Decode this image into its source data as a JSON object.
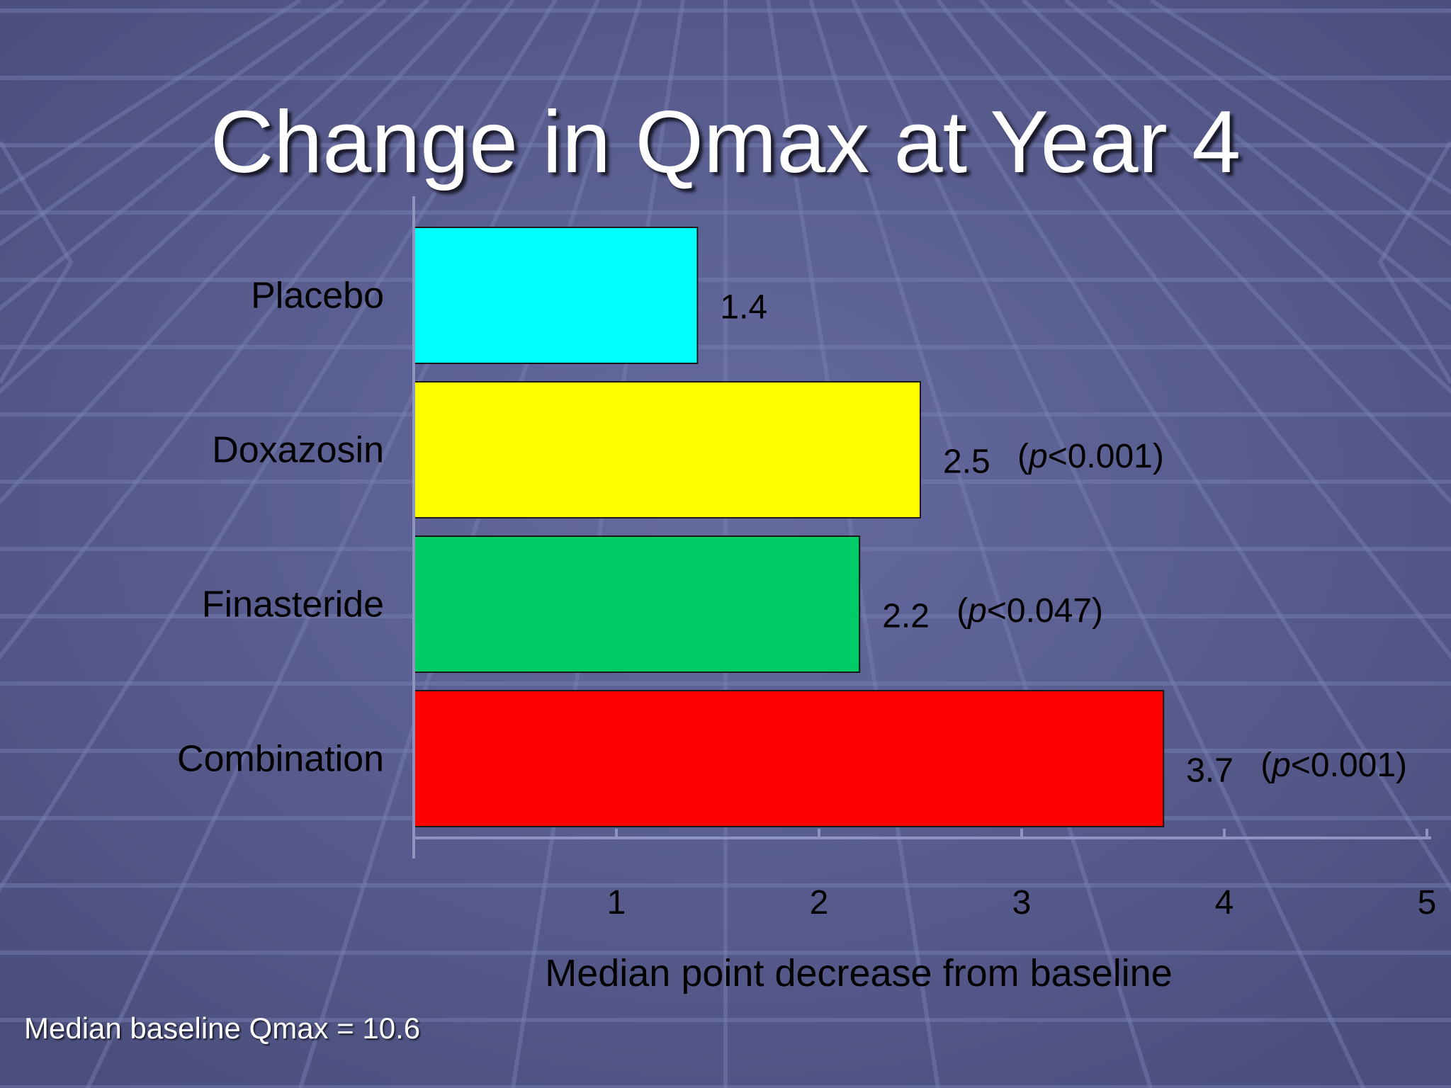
{
  "slide": {
    "title": "Change in Qmax at Year 4",
    "footnote": "Median baseline Qmax = 10.6"
  },
  "chart_data": {
    "type": "bar",
    "orientation": "horizontal",
    "categories": [
      "Placebo",
      "Doxazosin",
      "Finasteride",
      "Combination"
    ],
    "values": [
      1.4,
      2.5,
      2.2,
      3.7
    ],
    "data_labels": [
      "1.4",
      "2.5",
      "2.2",
      "3.7"
    ],
    "p_values": [
      "",
      "(p<0.001)",
      "(p<0.047)",
      "(p<0.001)"
    ],
    "colors": [
      "#00ffff",
      "#ffff00",
      "#00cc66",
      "#ff0000"
    ],
    "xlabel": "Median point decrease from baseline",
    "xticks": [
      1,
      2,
      3,
      4,
      5
    ],
    "xlim": [
      0,
      5
    ],
    "grid": false
  }
}
